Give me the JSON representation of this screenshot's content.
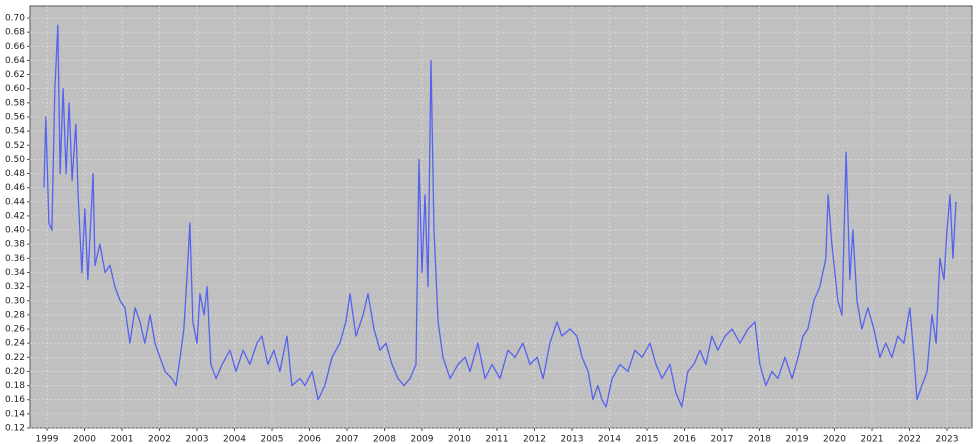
{
  "chart_data": {
    "type": "line",
    "x": [
      1998.92,
      1998.97,
      1999.05,
      1999.13,
      1999.21,
      1999.29,
      1999.35,
      1999.43,
      1999.51,
      1999.59,
      1999.67,
      1999.77,
      1999.83,
      1999.93,
      2000.01,
      2000.09,
      2000.23,
      2000.28,
      2000.41,
      2000.55,
      2000.68,
      2000.81,
      2000.95,
      2001.08,
      2001.21,
      2001.35,
      2001.48,
      2001.61,
      2001.75,
      2001.88,
      2002.01,
      2002.15,
      2002.33,
      2002.44,
      2002.55,
      2002.65,
      2002.73,
      2002.81,
      2002.89,
      2003.0,
      2003.08,
      2003.19,
      2003.27,
      2003.37,
      2003.51,
      2003.67,
      2003.88,
      2004.04,
      2004.23,
      2004.41,
      2004.6,
      2004.73,
      2004.89,
      2005.05,
      2005.21,
      2005.4,
      2005.53,
      2005.75,
      2005.88,
      2006.07,
      2006.23,
      2006.41,
      2006.6,
      2006.81,
      2006.97,
      2007.08,
      2007.24,
      2007.43,
      2007.56,
      2007.72,
      2007.88,
      2008.04,
      2008.2,
      2008.36,
      2008.52,
      2008.68,
      2008.84,
      2008.92,
      2009.0,
      2009.08,
      2009.16,
      2009.24,
      2009.32,
      2009.43,
      2009.56,
      2009.75,
      2009.96,
      2010.15,
      2010.28,
      2010.49,
      2010.68,
      2010.87,
      2011.08,
      2011.29,
      2011.48,
      2011.69,
      2011.88,
      2012.07,
      2012.23,
      2012.41,
      2012.6,
      2012.73,
      2012.95,
      2013.13,
      2013.27,
      2013.43,
      2013.56,
      2013.69,
      2013.8,
      2013.91,
      2014.07,
      2014.28,
      2014.49,
      2014.68,
      2014.87,
      2015.08,
      2015.24,
      2015.4,
      2015.61,
      2015.77,
      2015.93,
      2016.09,
      2016.25,
      2016.41,
      2016.57,
      2016.73,
      2016.89,
      2017.08,
      2017.27,
      2017.48,
      2017.69,
      2017.88,
      2018.01,
      2018.17,
      2018.33,
      2018.49,
      2018.68,
      2018.87,
      2019.03,
      2019.16,
      2019.29,
      2019.45,
      2019.61,
      2019.77,
      2019.83,
      2019.93,
      2020.09,
      2020.2,
      2020.31,
      2020.41,
      2020.49,
      2020.6,
      2020.73,
      2020.89,
      2021.05,
      2021.21,
      2021.37,
      2021.53,
      2021.69,
      2021.85,
      2022.01,
      2022.12,
      2022.2,
      2022.33,
      2022.47,
      2022.6,
      2022.71,
      2022.81,
      2022.92,
      2023.0,
      2023.08,
      2023.16,
      2023.24
    ],
    "series": [
      {
        "color": "#5462f0",
        "values": [
          0.46,
          0.56,
          0.41,
          0.4,
          0.6,
          0.69,
          0.48,
          0.6,
          0.48,
          0.58,
          0.47,
          0.55,
          0.45,
          0.34,
          0.43,
          0.33,
          0.48,
          0.35,
          0.38,
          0.34,
          0.35,
          0.32,
          0.3,
          0.29,
          0.24,
          0.29,
          0.27,
          0.24,
          0.28,
          0.24,
          0.22,
          0.2,
          0.19,
          0.18,
          0.22,
          0.26,
          0.33,
          0.41,
          0.27,
          0.24,
          0.31,
          0.28,
          0.32,
          0.21,
          0.19,
          0.21,
          0.23,
          0.2,
          0.23,
          0.21,
          0.24,
          0.25,
          0.21,
          0.23,
          0.2,
          0.25,
          0.18,
          0.19,
          0.18,
          0.2,
          0.16,
          0.18,
          0.22,
          0.24,
          0.27,
          0.31,
          0.25,
          0.28,
          0.31,
          0.26,
          0.23,
          0.24,
          0.21,
          0.19,
          0.18,
          0.19,
          0.21,
          0.5,
          0.34,
          0.45,
          0.32,
          0.64,
          0.4,
          0.27,
          0.22,
          0.19,
          0.21,
          0.22,
          0.2,
          0.24,
          0.19,
          0.21,
          0.19,
          0.23,
          0.22,
          0.24,
          0.21,
          0.22,
          0.19,
          0.24,
          0.27,
          0.25,
          0.26,
          0.25,
          0.22,
          0.2,
          0.16,
          0.18,
          0.16,
          0.15,
          0.19,
          0.21,
          0.2,
          0.23,
          0.22,
          0.24,
          0.21,
          0.19,
          0.21,
          0.17,
          0.15,
          0.2,
          0.21,
          0.23,
          0.21,
          0.25,
          0.23,
          0.25,
          0.26,
          0.24,
          0.26,
          0.27,
          0.21,
          0.18,
          0.2,
          0.19,
          0.22,
          0.19,
          0.22,
          0.25,
          0.26,
          0.3,
          0.32,
          0.36,
          0.45,
          0.38,
          0.3,
          0.28,
          0.51,
          0.33,
          0.4,
          0.3,
          0.26,
          0.29,
          0.26,
          0.22,
          0.24,
          0.22,
          0.25,
          0.24,
          0.29,
          0.22,
          0.16,
          0.18,
          0.2,
          0.28,
          0.24,
          0.36,
          0.33,
          0.4,
          0.45,
          0.36,
          0.44
        ]
      }
    ],
    "xlim": [
      1998.547,
      2023.667
    ],
    "xticks": [
      1999,
      2000,
      2001,
      2002,
      2003,
      2004,
      2005,
      2006,
      2007,
      2008,
      2009,
      2010,
      2011,
      2012,
      2013,
      2014,
      2015,
      2016,
      2017,
      2018,
      2019,
      2020,
      2021,
      2022,
      2023
    ],
    "ylim": [
      0.12,
      0.717
    ],
    "yticks": [
      0.12,
      0.14,
      0.16,
      0.18,
      {
        "value": 0.2,
        "label": "0.20"
      },
      0.22,
      0.24,
      0.26,
      0.28,
      {
        "value": 0.3,
        "label": "0.30"
      },
      0.32,
      0.34,
      0.36,
      0.38,
      {
        "value": 0.4,
        "label": "0.40"
      },
      0.42,
      0.44,
      0.46,
      0.48,
      {
        "value": 0.5,
        "label": "0.50"
      },
      0.52,
      0.54,
      0.56,
      0.58,
      {
        "value": 0.6,
        "label": "0.60"
      },
      0.62,
      0.64,
      0.66,
      0.68,
      {
        "value": 0.7,
        "label": "0.70"
      }
    ],
    "grid": true
  }
}
